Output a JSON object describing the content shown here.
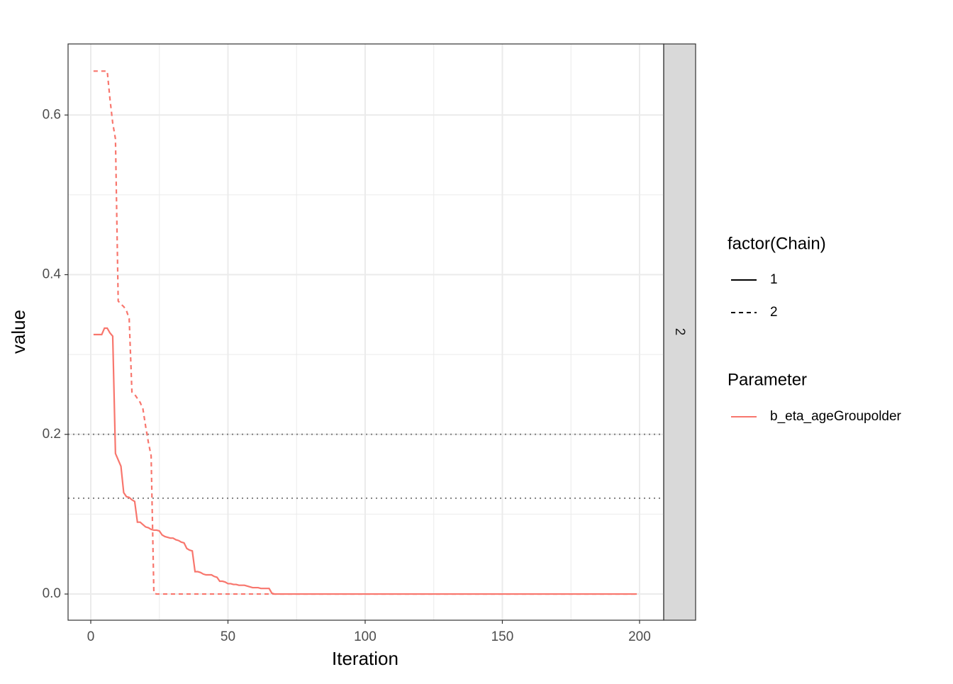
{
  "chart_data": {
    "type": "line",
    "x_label": "Iteration",
    "y_label": "value",
    "x": [
      1,
      2,
      3,
      4,
      5,
      6,
      7,
      8,
      9,
      10,
      11,
      12,
      13,
      14,
      15,
      16,
      17,
      18,
      19,
      20,
      21,
      22,
      23,
      24,
      25,
      26,
      27,
      28,
      29,
      30,
      31,
      32,
      33,
      34,
      35,
      36,
      37,
      38,
      39,
      40,
      41,
      42,
      43,
      44,
      45,
      46,
      47,
      48,
      49,
      50,
      51,
      52,
      53,
      54,
      55,
      56,
      57,
      58,
      59,
      60,
      61,
      62,
      63,
      64,
      65,
      66,
      67,
      68,
      69,
      70,
      100,
      150,
      199
    ],
    "series": [
      {
        "name": "1",
        "color": "#f8766d",
        "dash": "solid",
        "values": [
          0.325,
          0.325,
          0.325,
          0.325,
          0.333,
          0.333,
          0.327,
          0.323,
          0.176,
          0.168,
          0.16,
          0.127,
          0.122,
          0.121,
          0.118,
          0.116,
          0.09,
          0.09,
          0.087,
          0.084,
          0.083,
          0.081,
          0.08,
          0.08,
          0.079,
          0.074,
          0.072,
          0.071,
          0.07,
          0.07,
          0.068,
          0.067,
          0.065,
          0.064,
          0.057,
          0.055,
          0.054,
          0.028,
          0.028,
          0.027,
          0.025,
          0.024,
          0.024,
          0.024,
          0.022,
          0.021,
          0.016,
          0.016,
          0.015,
          0.013,
          0.013,
          0.012,
          0.012,
          0.011,
          0.011,
          0.011,
          0.01,
          0.009,
          0.008,
          0.008,
          0.008,
          0.007,
          0.007,
          0.007,
          0.007,
          0.001,
          0,
          0,
          0,
          0,
          0,
          0,
          0
        ]
      },
      {
        "name": "2",
        "color": "#f8766d",
        "dash": "dashed",
        "values": [
          0.655,
          0.655,
          0.655,
          0.655,
          0.655,
          0.655,
          0.62,
          0.59,
          0.57,
          0.367,
          0.363,
          0.36,
          0.355,
          0.345,
          0.253,
          0.25,
          0.245,
          0.24,
          0.232,
          0.21,
          0.19,
          0.173,
          0.001,
          0,
          0,
          0,
          0,
          0,
          0,
          0,
          0,
          0,
          0,
          0,
          0,
          0,
          0,
          0,
          0,
          0,
          0,
          0,
          0,
          0,
          0,
          0,
          0,
          0,
          0,
          0,
          0,
          0,
          0,
          0,
          0,
          0,
          0,
          0,
          0,
          0,
          0,
          0,
          0,
          0,
          0,
          0,
          0,
          0,
          0,
          0,
          0,
          0,
          0
        ]
      }
    ],
    "hlines": [
      0.2,
      0.12
    ],
    "xlim": [
      -8.27,
      208.8
    ],
    "ylim": [
      -0.0328,
      0.689
    ],
    "xticks": [
      0,
      50,
      100,
      150,
      200
    ],
    "yticks": [
      {
        "value": 0,
        "label": "0.0"
      },
      0.2,
      0.4,
      0.6
    ],
    "grid": true,
    "facet_label": "2",
    "legend_title": "factor(Chain)",
    "parameter_legend": {
      "title": "Parameter",
      "labels": [
        "b_eta_ageGroupolder"
      ]
    }
  }
}
